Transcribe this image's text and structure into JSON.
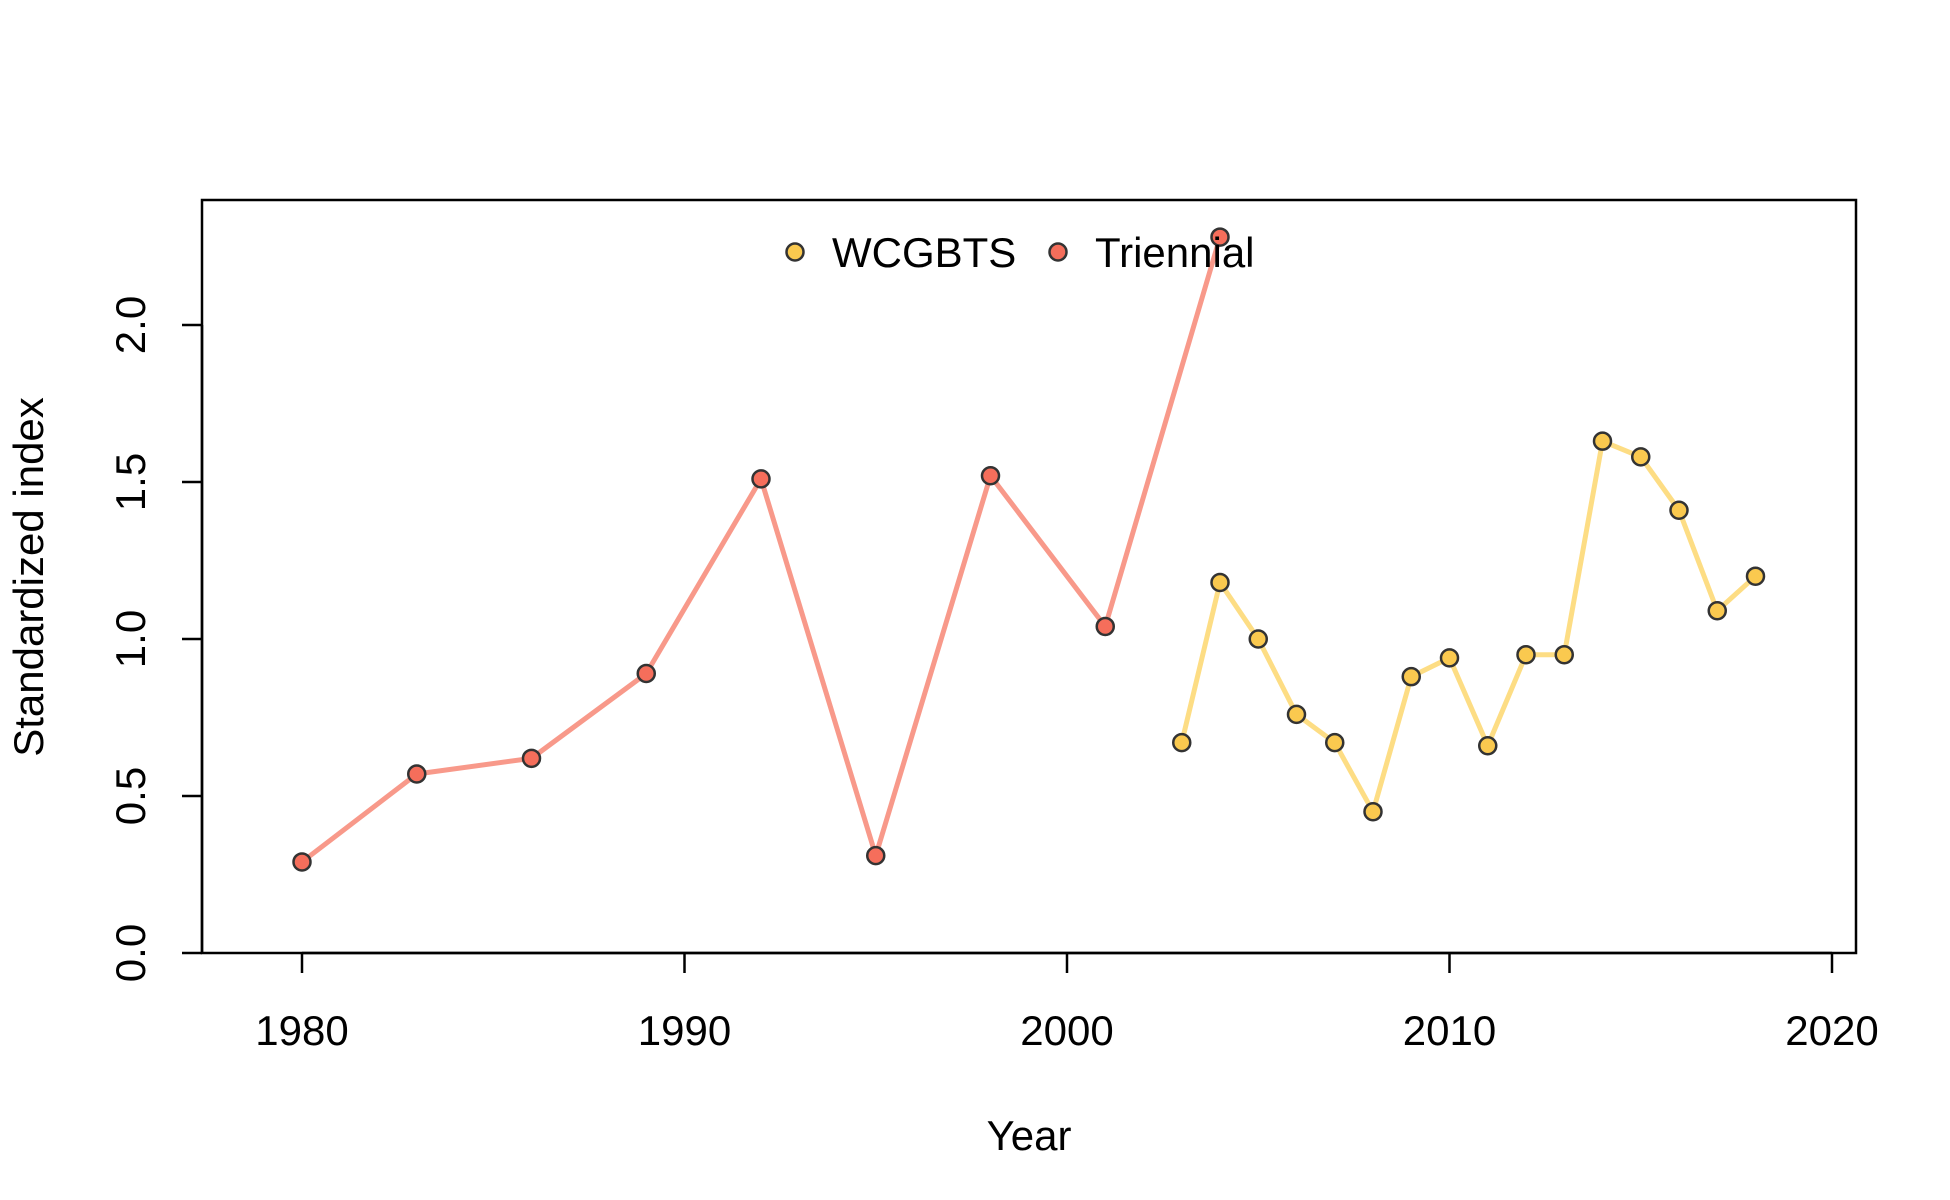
{
  "chart_data": {
    "type": "line",
    "title": "",
    "xlabel": "Year",
    "ylabel": "Standardized index",
    "xlim": [
      1977.4,
      2020.6
    ],
    "ylim": [
      0,
      2.4
    ],
    "x_ticks": [
      1980,
      1990,
      2000,
      2010,
      2020
    ],
    "y_ticks": [
      0.0,
      0.5,
      1.0,
      1.5,
      2.0
    ],
    "x_tick_labels": [
      "1980",
      "1990",
      "2000",
      "2010",
      "2020"
    ],
    "y_tick_labels": [
      "0.0",
      "0.5",
      "1.0",
      "1.5",
      "2.0"
    ],
    "grid": false,
    "legend_position": "top",
    "series": [
      {
        "name": "WCGBTS",
        "line_color": "#FDDD84",
        "point_color": "#FAC94F",
        "x": [
          2003,
          2004,
          2005,
          2006,
          2007,
          2008,
          2009,
          2010,
          2011,
          2012,
          2013,
          2014,
          2015,
          2016,
          2017,
          2018
        ],
        "y": [
          0.67,
          1.18,
          1.0,
          0.76,
          0.67,
          0.45,
          0.88,
          0.94,
          0.66,
          0.95,
          0.95,
          1.63,
          1.58,
          1.41,
          1.09,
          1.2
        ]
      },
      {
        "name": "Triennial",
        "line_color": "#F8998A",
        "point_color": "#F56E5B",
        "x": [
          1980,
          1983,
          1986,
          1989,
          1992,
          1995,
          1998,
          2001,
          2004
        ],
        "y": [
          0.29,
          0.57,
          0.62,
          0.89,
          1.51,
          0.31,
          1.52,
          1.04,
          2.28
        ]
      }
    ],
    "legend": [
      {
        "label": "WCGBTS",
        "color": "#FAC94F"
      },
      {
        "label": "Triennial",
        "color": "#F56E5B"
      }
    ]
  }
}
